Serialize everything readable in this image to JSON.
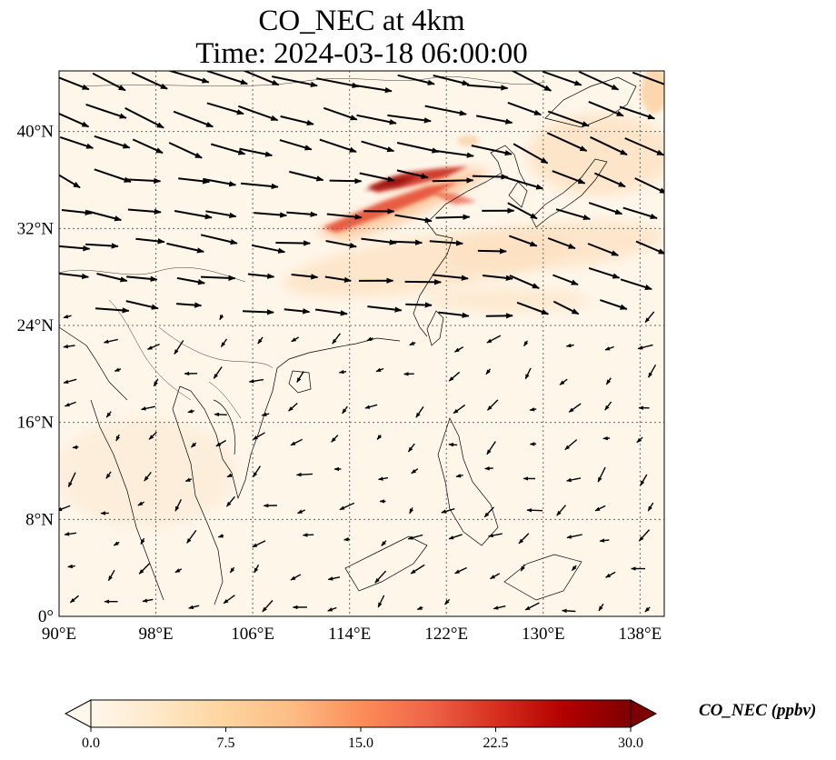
{
  "title": {
    "line1": "CO_NEC at 4km",
    "line2": "Time: 2024-03-18 06:00:00"
  },
  "map": {
    "lon_range": [
      90,
      140
    ],
    "lat_range": [
      0,
      45
    ],
    "lon_ticks": [
      {
        "value": 90,
        "label": "90°E"
      },
      {
        "value": 98,
        "label": "98°E"
      },
      {
        "value": 106,
        "label": "106°E"
      },
      {
        "value": 114,
        "label": "114°E"
      },
      {
        "value": 122,
        "label": "122°E"
      },
      {
        "value": 130,
        "label": "130°E"
      },
      {
        "value": 138,
        "label": "138°E"
      }
    ],
    "lat_ticks": [
      {
        "value": 0,
        "label": "0°"
      },
      {
        "value": 8,
        "label": "8°N"
      },
      {
        "value": 16,
        "label": "16°N"
      },
      {
        "value": 24,
        "label": "24°N"
      },
      {
        "value": 32,
        "label": "32°N"
      },
      {
        "value": 40,
        "label": "40°N"
      }
    ],
    "gridlines": "dotted",
    "wind_vectors": "black arrows, strong westerlies north of 24°N, weak flow south"
  },
  "colorbar": {
    "label": "CO_NEC (ppbv)",
    "cmap": "OrRd",
    "range": [
      0,
      30
    ],
    "ticks": [
      "0.0",
      "7.5",
      "15.0",
      "22.5",
      "30.0"
    ],
    "extend": "both",
    "colors": [
      "#fff7ec",
      "#fee8c8",
      "#fdd49e",
      "#fdbb84",
      "#fc8d59",
      "#ef6548",
      "#d7301f",
      "#b30000",
      "#7f0000"
    ]
  }
}
